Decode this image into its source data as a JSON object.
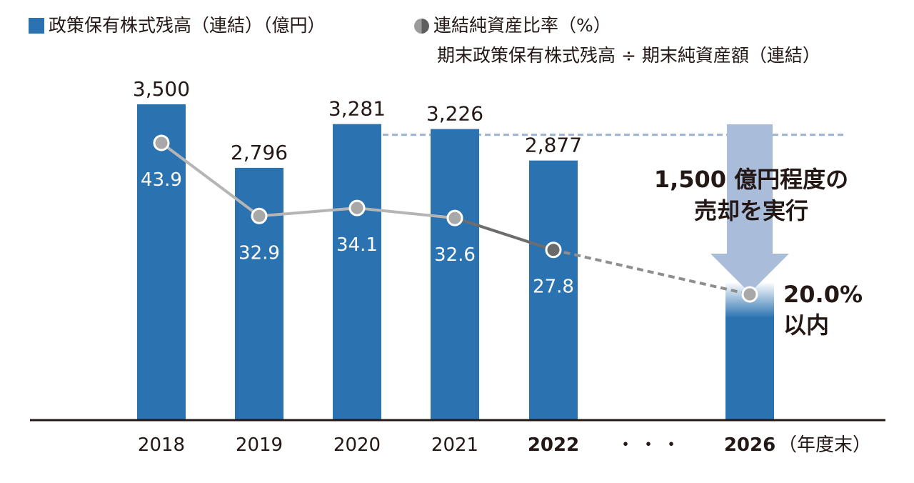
{
  "legend": {
    "bar_label": "政策保有株式残高（連結）（億円）",
    "line_label": "連結純資産比率（%）",
    "line_formula": "期末政策保有株式残高 ÷ 期末純資産額（連結）"
  },
  "colors": {
    "bar": "#2b72b0",
    "target_bar_fade": "#ffffff",
    "arrow": "#a9bcda",
    "dashed_ref": "#9cb3d6",
    "line_actual": "#b5b5b5",
    "line_recent": "#6d6d6d",
    "line_forecast": "#8e8e8e",
    "point_fill": "#a8a8a8",
    "point_fill_2022": "#6a6a6a",
    "axis": "#231815"
  },
  "chart_data": {
    "type": "bar",
    "categories": [
      "2018",
      "2019",
      "2020",
      "2021",
      "2022",
      "・・・",
      "2026"
    ],
    "x_unit": "（年度末）",
    "series": [
      {
        "name": "政策保有株式残高（連結）（億円）",
        "type": "bar",
        "values": [
          3500,
          2796,
          3281,
          3226,
          2877,
          null,
          null
        ],
        "value_labels": [
          "3,500",
          "2,796",
          "3,281",
          "3,226",
          "2,877",
          "",
          ""
        ]
      },
      {
        "name": "連結純資産比率（%）",
        "type": "line",
        "values": [
          43.9,
          32.9,
          34.1,
          32.6,
          27.8,
          null,
          20.0
        ],
        "value_labels": [
          "43.9",
          "32.9",
          "34.1",
          "32.6",
          "27.8",
          "",
          "20.0%"
        ]
      }
    ],
    "target_annotation": {
      "text_line1": "1,500 億円程度の",
      "text_line2": "売却を実行",
      "target_line1": "20.0%",
      "target_line2": "以内"
    },
    "bold_categories": [
      "2022",
      "2026"
    ],
    "ylim_bar": [
      0,
      3700
    ],
    "ylim_ratio": [
      0,
      50
    ]
  }
}
